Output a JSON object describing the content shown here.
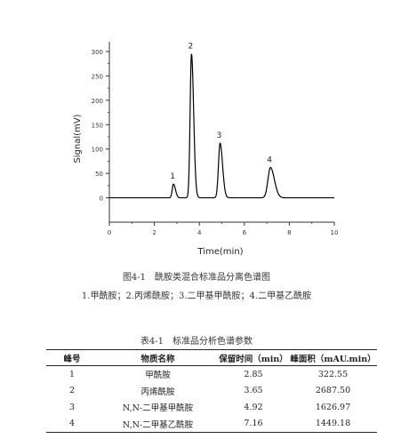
{
  "figure": {
    "caption": "图4-1　酰胺类混合标准品分离色谱图",
    "legend": "1.甲酰胺；2.丙烯酰胺；3.二甲基甲酰胺；4.二甲基乙酰胺"
  },
  "chart_data": {
    "type": "line",
    "title": "",
    "xlabel": "Time(min)",
    "ylabel": "Signal(mV)",
    "xlim": [
      0,
      10
    ],
    "ylim": [
      -50,
      320
    ],
    "x_ticks": [
      0,
      2,
      4,
      6,
      8,
      10
    ],
    "y_ticks": [
      0,
      50,
      100,
      150,
      200,
      250,
      300
    ],
    "grid": false,
    "baseline": 0,
    "series": [
      {
        "peaks": [
          {
            "label": "1",
            "x": 2.85,
            "height": 28,
            "sigma": 0.055
          },
          {
            "label": "2",
            "x": 3.65,
            "height": 295,
            "sigma": 0.06
          },
          {
            "label": "3",
            "x": 4.92,
            "height": 112,
            "sigma": 0.07
          },
          {
            "label": "4",
            "x": 7.16,
            "height": 62,
            "sigma": 0.11
          }
        ]
      }
    ],
    "line_color": "#000000"
  },
  "table": {
    "caption": "表4-1　标准品分析色谱参数",
    "headers": [
      "峰号",
      "物质名称",
      "保留时间（min）",
      "峰面积（mAU.min）"
    ],
    "rows": [
      [
        "1",
        "甲酰胺",
        "2.85",
        "322.55"
      ],
      [
        "2",
        "丙烯酰胺",
        "3.65",
        "2687.50"
      ],
      [
        "3",
        "N,N-二甲基甲酰胺",
        "4.92",
        "1626.97"
      ],
      [
        "4",
        "N,N-二甲基乙酰胺",
        "7.16",
        "1449.18"
      ]
    ]
  }
}
